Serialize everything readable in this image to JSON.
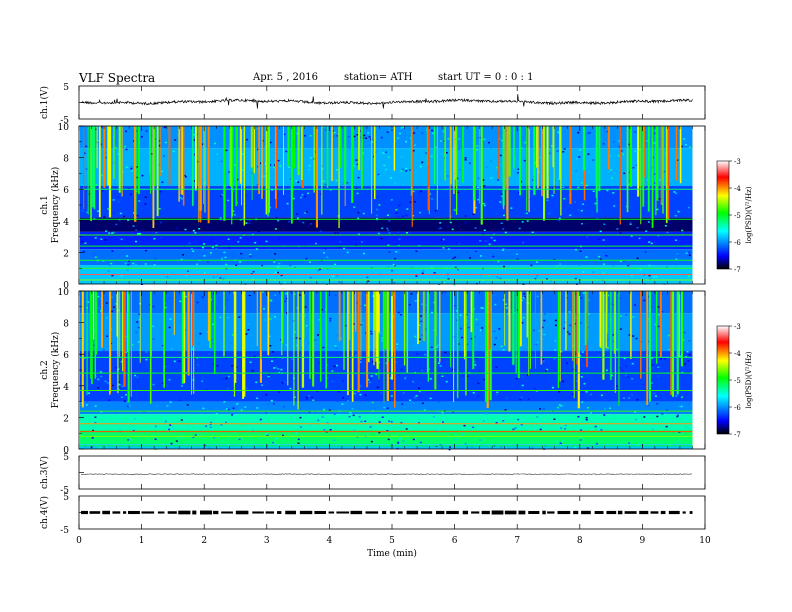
{
  "header": {
    "title": "VLF  Spectra",
    "date": "Apr. 5  , 2016",
    "station": "station= ATH",
    "start": "start  UT  =   0 : 0  : 1"
  },
  "chart_data": [
    {
      "type": "line",
      "panel": "ch.1 waveform",
      "ylabel": "ch.1(V)",
      "yticks": [
        "5",
        "-5"
      ],
      "ylim": [
        -5,
        5
      ],
      "series_level": 0.2,
      "x_range": [
        0,
        9.8
      ]
    },
    {
      "type": "heatmap",
      "panel": "ch.1 spectrogram",
      "ylabel_channel": "ch.1",
      "ylabel": "Frequency  (kHz)",
      "yticks": [
        "10",
        "8",
        "6",
        "4",
        "2",
        "0"
      ],
      "ylim": [
        0,
        10
      ],
      "colorbar_label": "log(PSD)(V²/Hz)",
      "colorbar_ticks": [
        "-3",
        "-4",
        "-5",
        "-6",
        "-7"
      ],
      "colorbar_range": [
        -7,
        -3
      ],
      "x_range": [
        0,
        9.8
      ]
    },
    {
      "type": "heatmap",
      "panel": "ch.2 spectrogram",
      "ylabel_channel": "ch.2",
      "ylabel": "Frequency  (kHz)",
      "yticks": [
        "10",
        "8",
        "6",
        "4",
        "2",
        "0"
      ],
      "ylim": [
        0,
        10
      ],
      "colorbar_label": "log(PSD)(V²/Hz)",
      "colorbar_ticks": [
        "-3",
        "-4",
        "-5",
        "-6",
        "-7"
      ],
      "colorbar_range": [
        -7,
        -3
      ],
      "x_range": [
        0,
        9.8
      ]
    },
    {
      "type": "line",
      "panel": "ch.3 waveform",
      "ylabel": "ch.3(V)",
      "yticks": [
        "5",
        "-5"
      ],
      "ylim": [
        -5,
        5
      ],
      "series_level": -0.5,
      "x_range": [
        0,
        9.8
      ]
    },
    {
      "type": "line",
      "panel": "ch.4 waveform",
      "ylabel": "ch.4(V)",
      "yticks": [
        "5",
        "-5"
      ],
      "ylim": [
        -5,
        5
      ],
      "series_level": 0,
      "x_range": [
        0,
        9.8
      ]
    }
  ],
  "xaxis": {
    "label": "Time  (min)",
    "ticks": [
      "0",
      "1",
      "2",
      "3",
      "4",
      "5",
      "6",
      "7",
      "8",
      "9",
      "10"
    ],
    "xlim": [
      0,
      10
    ]
  },
  "colors": {
    "scale": [
      "#000000",
      "#0000ff",
      "#00ffff",
      "#00ff00",
      "#ffff00",
      "#ff0000",
      "#ffffff"
    ]
  }
}
